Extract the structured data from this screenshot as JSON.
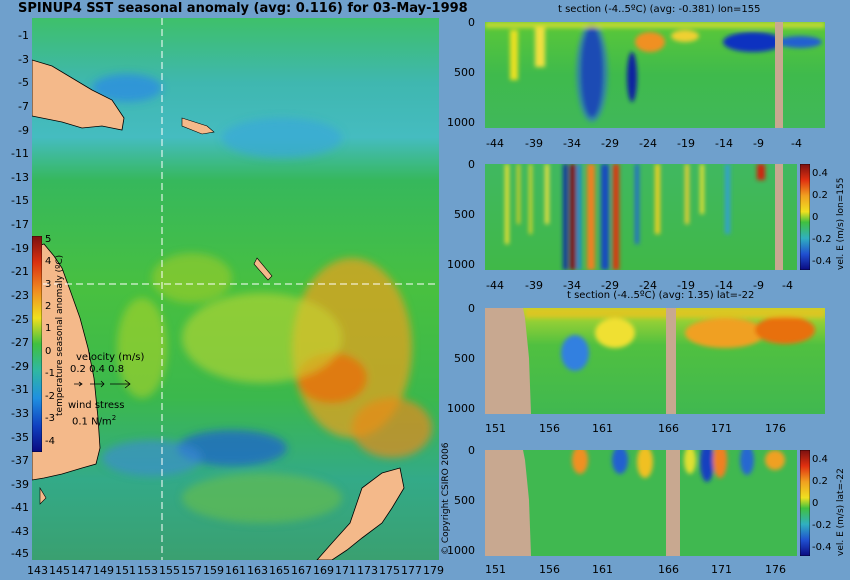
{
  "main_title": "SPINUP4 SST seasonal anomaly (avg: 0.116) for 03-May-1998",
  "map": {
    "lat_ticks": [
      "-1",
      "-3",
      "-5",
      "-7",
      "-9",
      "-11",
      "-13",
      "-15",
      "-17",
      "-19",
      "-21",
      "-23",
      "-25",
      "-27",
      "-29",
      "-31",
      "-33",
      "-35",
      "-37",
      "-39",
      "-41",
      "-43",
      "-45"
    ],
    "lon_ticks": [
      "143",
      "145",
      "147",
      "149",
      "151",
      "153",
      "155",
      "157",
      "159",
      "161",
      "163",
      "165",
      "167",
      "169",
      "171",
      "173",
      "175",
      "177",
      "179"
    ],
    "colorbar_label": "temperature seasonal anomaly (ºC)",
    "colorbar_ticks": [
      "5",
      "4",
      "3",
      "2",
      "1",
      "0",
      "-1",
      "-2",
      "-3",
      "-4"
    ],
    "velocity_label": "velocity (m/s)",
    "velocity_scale": "0.2 0.4 0.8",
    "wind_label": "wind stress",
    "wind_scale": "0.1 N/m",
    "wind_scale_sup": "2"
  },
  "panel1": {
    "title": "t section (-4..5ºC) (avg: -0.381) lon=155",
    "y_ticks": [
      "0",
      "500",
      "1000"
    ],
    "x_ticks": [
      "-44",
      "-39",
      "-34",
      "-29",
      "-24",
      "-19",
      "-14",
      "-9",
      "-4"
    ]
  },
  "panel2": {
    "title": "",
    "y_ticks": [
      "0",
      "500",
      "1000"
    ],
    "x_ticks": [
      "-44",
      "-39",
      "-34",
      "-29",
      "-24",
      "-19",
      "-14",
      "-9",
      "-4"
    ],
    "colorbar_ticks": [
      "0.4",
      "0.2",
      "0",
      "-0.2",
      "-0.4"
    ],
    "side_label": "vel. E (m/s) lon=155"
  },
  "panel3": {
    "title": "t section (-4..5ºC) (avg: 1.35) lat=-22",
    "y_ticks": [
      "0",
      "500",
      "1000"
    ],
    "x_ticks": [
      "151",
      "156",
      "161",
      "166",
      "171",
      "176"
    ]
  },
  "panel4": {
    "title": "",
    "y_ticks": [
      "0",
      "500",
      "1000"
    ],
    "x_ticks": [
      "151",
      "156",
      "161",
      "166",
      "171",
      "176"
    ],
    "colorbar_ticks": [
      "0.4",
      "0.2",
      "0",
      "-0.2",
      "-0.4"
    ],
    "side_label": "vel. E (m/s) lat=-22"
  },
  "copyright": "© Copyright CSIRO 2006"
}
